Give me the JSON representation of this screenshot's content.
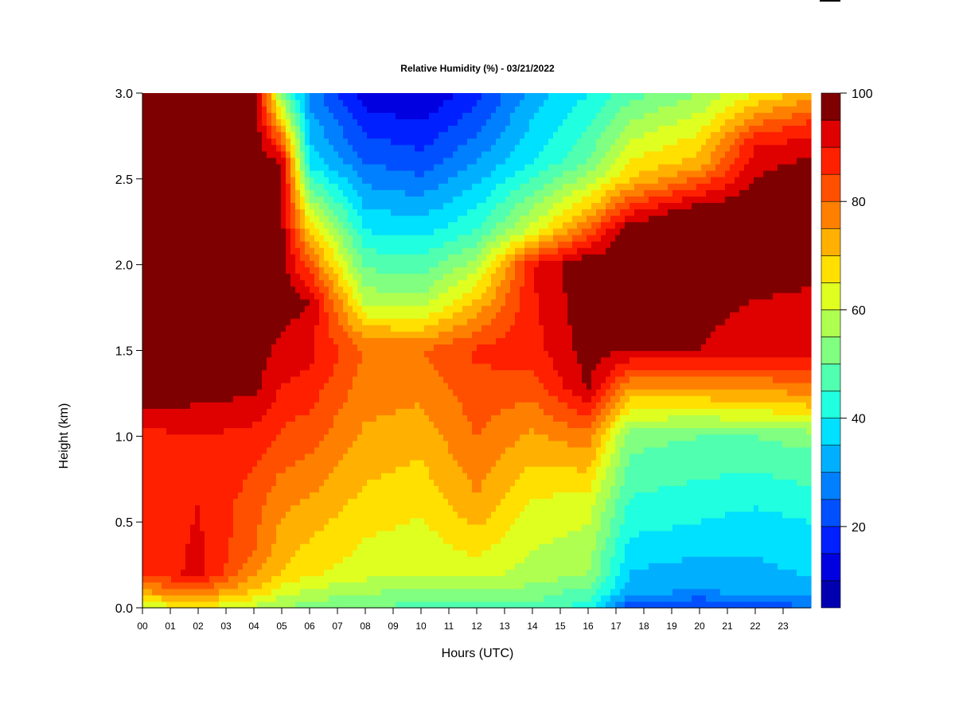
{
  "chart_data": {
    "type": "heatmap",
    "title": "Relative Humidity (%) - 03/21/2022",
    "xlabel": "Hours (UTC)",
    "ylabel": "Height (km)",
    "x_ticks": [
      "00",
      "01",
      "02",
      "03",
      "04",
      "05",
      "06",
      "07",
      "08",
      "09",
      "10",
      "11",
      "12",
      "13",
      "14",
      "15",
      "16",
      "17",
      "18",
      "19",
      "20",
      "21",
      "22",
      "23"
    ],
    "xlim": [
      0,
      24
    ],
    "y_ticks": [
      "0.0",
      "0.5",
      "1.0",
      "1.5",
      "2.0",
      "2.5",
      "3.0"
    ],
    "ylim": [
      0,
      3
    ],
    "colorbar": {
      "ticks": [
        "20",
        "40",
        "60",
        "80",
        "100"
      ],
      "range": [
        5,
        100
      ],
      "levels": [
        5,
        10,
        15,
        20,
        25,
        30,
        35,
        40,
        45,
        50,
        55,
        60,
        65,
        70,
        75,
        80,
        85,
        90,
        95,
        100
      ],
      "colors": [
        "#00007f",
        "#0000b0",
        "#0000e0",
        "#0020ff",
        "#0050ff",
        "#0080ff",
        "#00b0ff",
        "#00e0ff",
        "#20ffdf",
        "#50ffaf",
        "#80ff80",
        "#afff50",
        "#dfff20",
        "#ffe000",
        "#ffb000",
        "#ff8000",
        "#ff5000",
        "#ff2000",
        "#df0000",
        "#7f0000"
      ]
    },
    "z_description_by_time": [
      {
        "hour": 0,
        "rh_by_height": [
          [
            0.0,
            60
          ],
          [
            0.1,
            75
          ],
          [
            0.2,
            85
          ],
          [
            0.6,
            85
          ],
          [
            1.0,
            88
          ],
          [
            1.2,
            97
          ],
          [
            3.0,
            100
          ]
        ]
      },
      {
        "hour": 2,
        "rh_by_height": [
          [
            0.0,
            65
          ],
          [
            0.1,
            80
          ],
          [
            0.2,
            92
          ],
          [
            0.6,
            90
          ],
          [
            1.0,
            90
          ],
          [
            1.3,
            98
          ],
          [
            3.0,
            100
          ]
        ]
      },
      {
        "hour": 4,
        "rh_by_height": [
          [
            0.0,
            58
          ],
          [
            0.1,
            70
          ],
          [
            0.3,
            80
          ],
          [
            0.6,
            82
          ],
          [
            1.0,
            88
          ],
          [
            1.3,
            97
          ],
          [
            3.0,
            100
          ]
        ]
      },
      {
        "hour": 5,
        "rh_by_height": [
          [
            0.0,
            55
          ],
          [
            0.2,
            70
          ],
          [
            0.6,
            76
          ],
          [
            1.0,
            84
          ],
          [
            1.4,
            92
          ],
          [
            1.8,
            98
          ],
          [
            2.6,
            95
          ],
          [
            3.0,
            52
          ]
        ]
      },
      {
        "hour": 6,
        "rh_by_height": [
          [
            0.0,
            52
          ],
          [
            0.2,
            66
          ],
          [
            0.6,
            74
          ],
          [
            1.0,
            82
          ],
          [
            1.4,
            90
          ],
          [
            1.8,
            95
          ],
          [
            2.2,
            70
          ],
          [
            2.6,
            38
          ],
          [
            3.0,
            28
          ]
        ]
      },
      {
        "hour": 8,
        "rh_by_height": [
          [
            0.0,
            50
          ],
          [
            0.2,
            62
          ],
          [
            0.6,
            68
          ],
          [
            1.0,
            74
          ],
          [
            1.5,
            80
          ],
          [
            1.8,
            58
          ],
          [
            2.2,
            40
          ],
          [
            2.6,
            25
          ],
          [
            3.0,
            12
          ]
        ]
      },
      {
        "hour": 10,
        "rh_by_height": [
          [
            0.0,
            48
          ],
          [
            0.2,
            60
          ],
          [
            0.6,
            66
          ],
          [
            1.0,
            72
          ],
          [
            1.5,
            80
          ],
          [
            1.8,
            56
          ],
          [
            2.2,
            38
          ],
          [
            2.6,
            22
          ],
          [
            3.0,
            10
          ]
        ]
      },
      {
        "hour": 12,
        "rh_by_height": [
          [
            0.0,
            48
          ],
          [
            0.2,
            62
          ],
          [
            0.6,
            74
          ],
          [
            1.0,
            80
          ],
          [
            1.5,
            86
          ],
          [
            1.8,
            70
          ],
          [
            2.2,
            45
          ],
          [
            2.6,
            30
          ],
          [
            3.0,
            18
          ]
        ]
      },
      {
        "hour": 14,
        "rh_by_height": [
          [
            0.0,
            48
          ],
          [
            0.2,
            58
          ],
          [
            0.6,
            64
          ],
          [
            1.0,
            74
          ],
          [
            1.5,
            88
          ],
          [
            2.0,
            90
          ],
          [
            2.2,
            62
          ],
          [
            2.6,
            40
          ],
          [
            3.0,
            32
          ]
        ]
      },
      {
        "hour": 16,
        "rh_by_height": [
          [
            0.0,
            42
          ],
          [
            0.2,
            55
          ],
          [
            0.6,
            62
          ],
          [
            1.0,
            78
          ],
          [
            1.3,
            96
          ],
          [
            2.0,
            100
          ],
          [
            2.3,
            72
          ],
          [
            2.6,
            50
          ],
          [
            3.0,
            40
          ]
        ]
      },
      {
        "hour": 17.5,
        "rh_by_height": [
          [
            0.0,
            20
          ],
          [
            0.1,
            32
          ],
          [
            0.5,
            42
          ],
          [
            1.0,
            52
          ],
          [
            1.2,
            68
          ],
          [
            1.5,
            95
          ],
          [
            2.2,
            100
          ],
          [
            2.5,
            70
          ],
          [
            3.0,
            48
          ]
        ]
      },
      {
        "hour": 20,
        "rh_by_height": [
          [
            0.0,
            18
          ],
          [
            0.1,
            30
          ],
          [
            0.5,
            40
          ],
          [
            1.0,
            50
          ],
          [
            1.2,
            68
          ],
          [
            1.5,
            95
          ],
          [
            2.3,
            100
          ],
          [
            2.6,
            72
          ],
          [
            3.0,
            55
          ]
        ]
      },
      {
        "hour": 22,
        "rh_by_height": [
          [
            0.0,
            20
          ],
          [
            0.1,
            32
          ],
          [
            0.5,
            38
          ],
          [
            1.0,
            50
          ],
          [
            1.2,
            70
          ],
          [
            1.5,
            92
          ],
          [
            2.3,
            100
          ],
          [
            2.7,
            90
          ],
          [
            3.0,
            65
          ]
        ]
      },
      {
        "hour": 24,
        "rh_by_height": [
          [
            0.0,
            25
          ],
          [
            0.1,
            34
          ],
          [
            0.5,
            40
          ],
          [
            1.0,
            52
          ],
          [
            1.2,
            72
          ],
          [
            1.5,
            92
          ],
          [
            2.5,
            100
          ],
          [
            2.8,
            88
          ],
          [
            3.0,
            72
          ]
        ]
      }
    ],
    "grid": false,
    "legend": "right"
  }
}
